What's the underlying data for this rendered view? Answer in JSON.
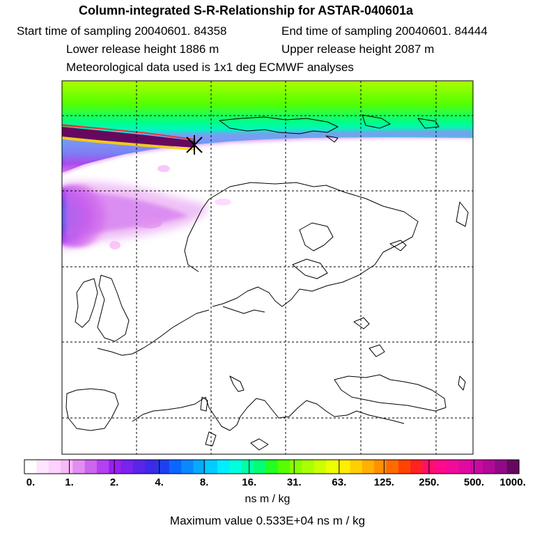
{
  "header": {
    "title": "Column-integrated S-R-Relationship for ASTAR-040601a",
    "start_time": "Start time of sampling 20040601. 84358",
    "end_time": "End time of sampling 20040601. 84444",
    "lower_height": "Lower release height 1886 m",
    "upper_height": "Upper release height 2087 m",
    "met_data": "Meteorological data used is 1x1 deg ECMWF analyses"
  },
  "colorbar": {
    "labels": [
      "0.",
      "1.",
      "2.",
      "4.",
      "8.",
      "16.",
      "31.",
      "63.",
      "125.",
      "250.",
      "500.",
      "1000."
    ],
    "colors": [
      "#ffffff",
      "#ffe6ff",
      "#fdd2fd",
      "#f8b9f8",
      "#e28ef0",
      "#cc66ee",
      "#b540ef",
      "#9a1ff2",
      "#7a22ee",
      "#5a24ea",
      "#3b2ae7",
      "#1f3ff0",
      "#0a66ff",
      "#0a88ff",
      "#06aaff",
      "#00ccff",
      "#00eeff",
      "#00ffdd",
      "#00ffaa",
      "#00ff77",
      "#22ff22",
      "#55ff00",
      "#88ff00",
      "#aaff00",
      "#ccff00",
      "#eeff00",
      "#ffee00",
      "#ffd000",
      "#ffb000",
      "#ff9000",
      "#ff6a00",
      "#ff4400",
      "#ff2222",
      "#ff0f6a",
      "#ff0a8c",
      "#f20a9a",
      "#e00aa0",
      "#c80aa0",
      "#b00a96",
      "#900a88",
      "#66085e"
    ],
    "units": "ns m / kg"
  },
  "max_value": "Maximum value  0.533E+04 ns m / kg",
  "map_colors": {
    "coast": "#000000",
    "grid": "#000000",
    "release_marker": "#000000"
  }
}
